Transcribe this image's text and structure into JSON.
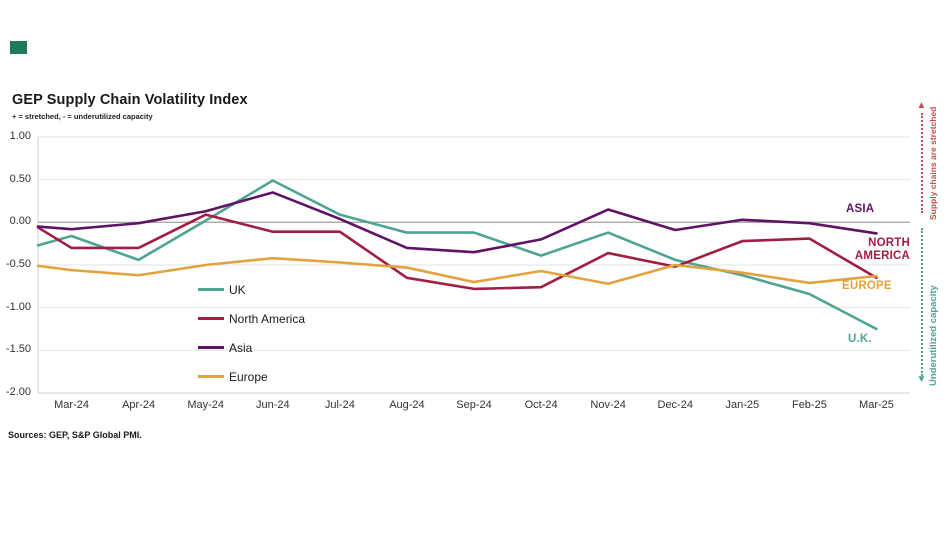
{
  "page": {
    "title": "GEP Supply Chain Volatility Index",
    "subtitle": "+ = stretched, - = underutilized capacity",
    "sources": "Sources: GEP, S&P Global PMI."
  },
  "annotations": {
    "top": {
      "label": "Supply chains are stretched",
      "color": "#C0504D",
      "arrow": "▲"
    },
    "bottom": {
      "label": "Underutilized capacity",
      "color": "#4FA392",
      "arrow": "▼"
    }
  },
  "chart_data": {
    "type": "line",
    "title": "GEP Supply Chain Volatility Index",
    "subtitle": "+ = stretched, - = underutilized capacity",
    "categories": [
      "Mar-24",
      "Apr-24",
      "May-24",
      "Jun-24",
      "Jul-24",
      "Aug-24",
      "Sep-24",
      "Oct-24",
      "Nov-24",
      "Dec-24",
      "Jan-25",
      "Feb-25",
      "Mar-25"
    ],
    "y_ticks": [
      1.0,
      0.5,
      0.0,
      -0.5,
      -1.0,
      -1.5,
      -2.0
    ],
    "y_tick_labels": [
      "1.00",
      "0.50",
      "0.00",
      "-0.50",
      "-1.00",
      "-1.50",
      "-2.00"
    ],
    "ylim": [
      -2.0,
      1.0
    ],
    "grid": "horizontal",
    "zero_line": true,
    "legend_position": "inside-bottom-left",
    "series": [
      {
        "name": "UK",
        "end_label": "U.K.",
        "color": "#4FA392",
        "left_edge_value": -0.27,
        "values": [
          -0.16,
          -0.44,
          0.02,
          0.49,
          0.09,
          -0.12,
          -0.12,
          -0.39,
          -0.12,
          -0.44,
          -0.62,
          -0.84,
          -1.25
        ]
      },
      {
        "name": "North America",
        "end_label": "NORTH AMERICA",
        "color": "#A01E41",
        "left_edge_value": -0.06,
        "values": [
          -0.3,
          -0.3,
          0.09,
          -0.11,
          -0.11,
          -0.65,
          -0.78,
          -0.76,
          -0.36,
          -0.52,
          -0.22,
          -0.19,
          -0.65
        ]
      },
      {
        "name": "Asia",
        "end_label": "ASIA",
        "color": "#5E1366",
        "left_edge_value": -0.05,
        "values": [
          -0.08,
          -0.01,
          0.13,
          0.35,
          0.04,
          -0.3,
          -0.35,
          -0.2,
          0.15,
          -0.09,
          0.03,
          -0.01,
          -0.13
        ]
      },
      {
        "name": "Europe",
        "end_label": "EUROPE",
        "color": "#E2A33E",
        "left_edge_value": -0.51,
        "values": [
          -0.56,
          -0.62,
          -0.5,
          -0.42,
          -0.47,
          -0.53,
          -0.7,
          -0.57,
          -0.72,
          -0.5,
          -0.59,
          -0.71,
          -0.63
        ]
      }
    ]
  }
}
